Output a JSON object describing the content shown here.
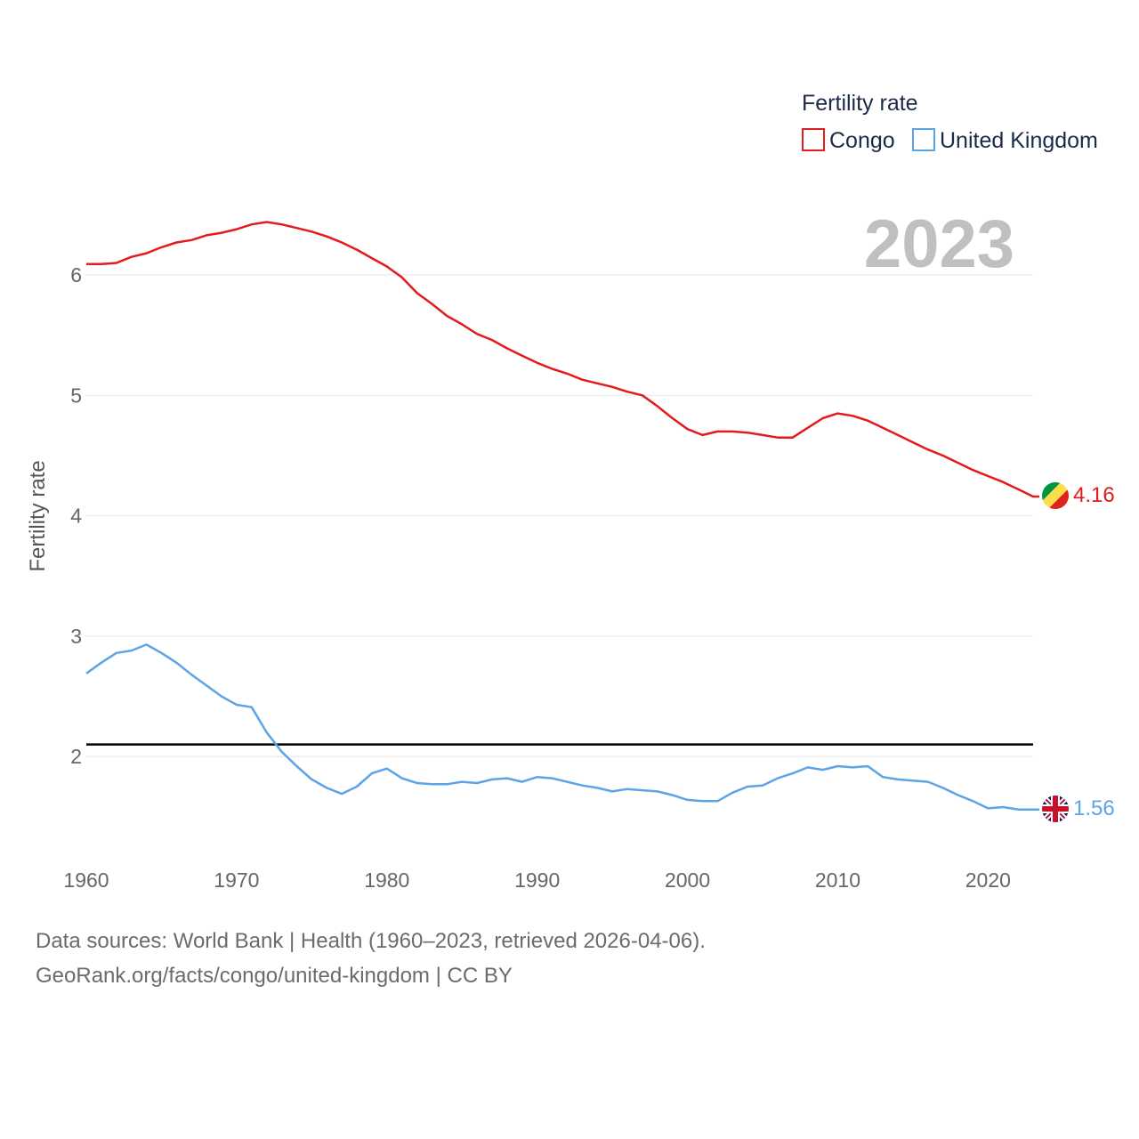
{
  "chart_data": {
    "type": "line",
    "title": "",
    "legend_title": "Fertility rate",
    "ylabel": "Fertility rate",
    "xlabel": "",
    "year_label": "2023",
    "xlim": [
      1960,
      2023
    ],
    "ylim": [
      1.2,
      7.0
    ],
    "x_ticks": [
      1960,
      1970,
      1980,
      1990,
      2000,
      2010,
      2020
    ],
    "y_ticks": [
      2,
      3,
      4,
      5,
      6
    ],
    "reference_line": 2.1,
    "x": [
      1960,
      1961,
      1962,
      1963,
      1964,
      1965,
      1966,
      1967,
      1968,
      1969,
      1970,
      1971,
      1972,
      1973,
      1974,
      1975,
      1976,
      1977,
      1978,
      1979,
      1980,
      1981,
      1982,
      1983,
      1984,
      1985,
      1986,
      1987,
      1988,
      1989,
      1990,
      1991,
      1992,
      1993,
      1994,
      1995,
      1996,
      1997,
      1998,
      1999,
      2000,
      2001,
      2002,
      2003,
      2004,
      2005,
      2006,
      2007,
      2008,
      2009,
      2010,
      2011,
      2012,
      2013,
      2014,
      2015,
      2016,
      2017,
      2018,
      2019,
      2020,
      2021,
      2022,
      2023
    ],
    "series": [
      {
        "name": "Congo",
        "color": "#e41a1c",
        "end_label": "4.16",
        "values": [
          6.09,
          6.09,
          6.1,
          6.15,
          6.18,
          6.23,
          6.27,
          6.29,
          6.33,
          6.35,
          6.38,
          6.42,
          6.44,
          6.42,
          6.39,
          6.36,
          6.32,
          6.27,
          6.21,
          6.14,
          6.07,
          5.98,
          5.85,
          5.76,
          5.66,
          5.59,
          5.51,
          5.46,
          5.39,
          5.33,
          5.27,
          5.22,
          5.18,
          5.13,
          5.1,
          5.07,
          5.03,
          5.0,
          4.91,
          4.81,
          4.72,
          4.67,
          4.7,
          4.7,
          4.69,
          4.67,
          4.65,
          4.65,
          4.73,
          4.81,
          4.85,
          4.83,
          4.79,
          4.73,
          4.67,
          4.61,
          4.55,
          4.5,
          4.44,
          4.38,
          4.33,
          4.28,
          4.22,
          4.16
        ]
      },
      {
        "name": "United Kingdom",
        "color": "#5ba4e8",
        "end_label": "1.56",
        "values": [
          2.69,
          2.78,
          2.86,
          2.88,
          2.93,
          2.86,
          2.78,
          2.68,
          2.59,
          2.5,
          2.43,
          2.41,
          2.2,
          2.04,
          1.92,
          1.81,
          1.74,
          1.69,
          1.75,
          1.86,
          1.9,
          1.82,
          1.78,
          1.77,
          1.77,
          1.79,
          1.78,
          1.81,
          1.82,
          1.79,
          1.83,
          1.82,
          1.79,
          1.76,
          1.74,
          1.71,
          1.73,
          1.72,
          1.71,
          1.68,
          1.64,
          1.63,
          1.63,
          1.7,
          1.75,
          1.76,
          1.82,
          1.86,
          1.91,
          1.89,
          1.92,
          1.91,
          1.92,
          1.83,
          1.81,
          1.8,
          1.79,
          1.74,
          1.68,
          1.63,
          1.57,
          1.58,
          1.56,
          1.56
        ]
      }
    ]
  },
  "footer": {
    "line1": "Data sources: World Bank | Health (1960–2023, retrieved 2026-04-06).",
    "line2": "GeoRank.org/facts/congo/united-kingdom | CC BY"
  },
  "icons": {
    "congo_flag": "congo-flag-icon",
    "uk_flag": "uk-flag-icon"
  }
}
